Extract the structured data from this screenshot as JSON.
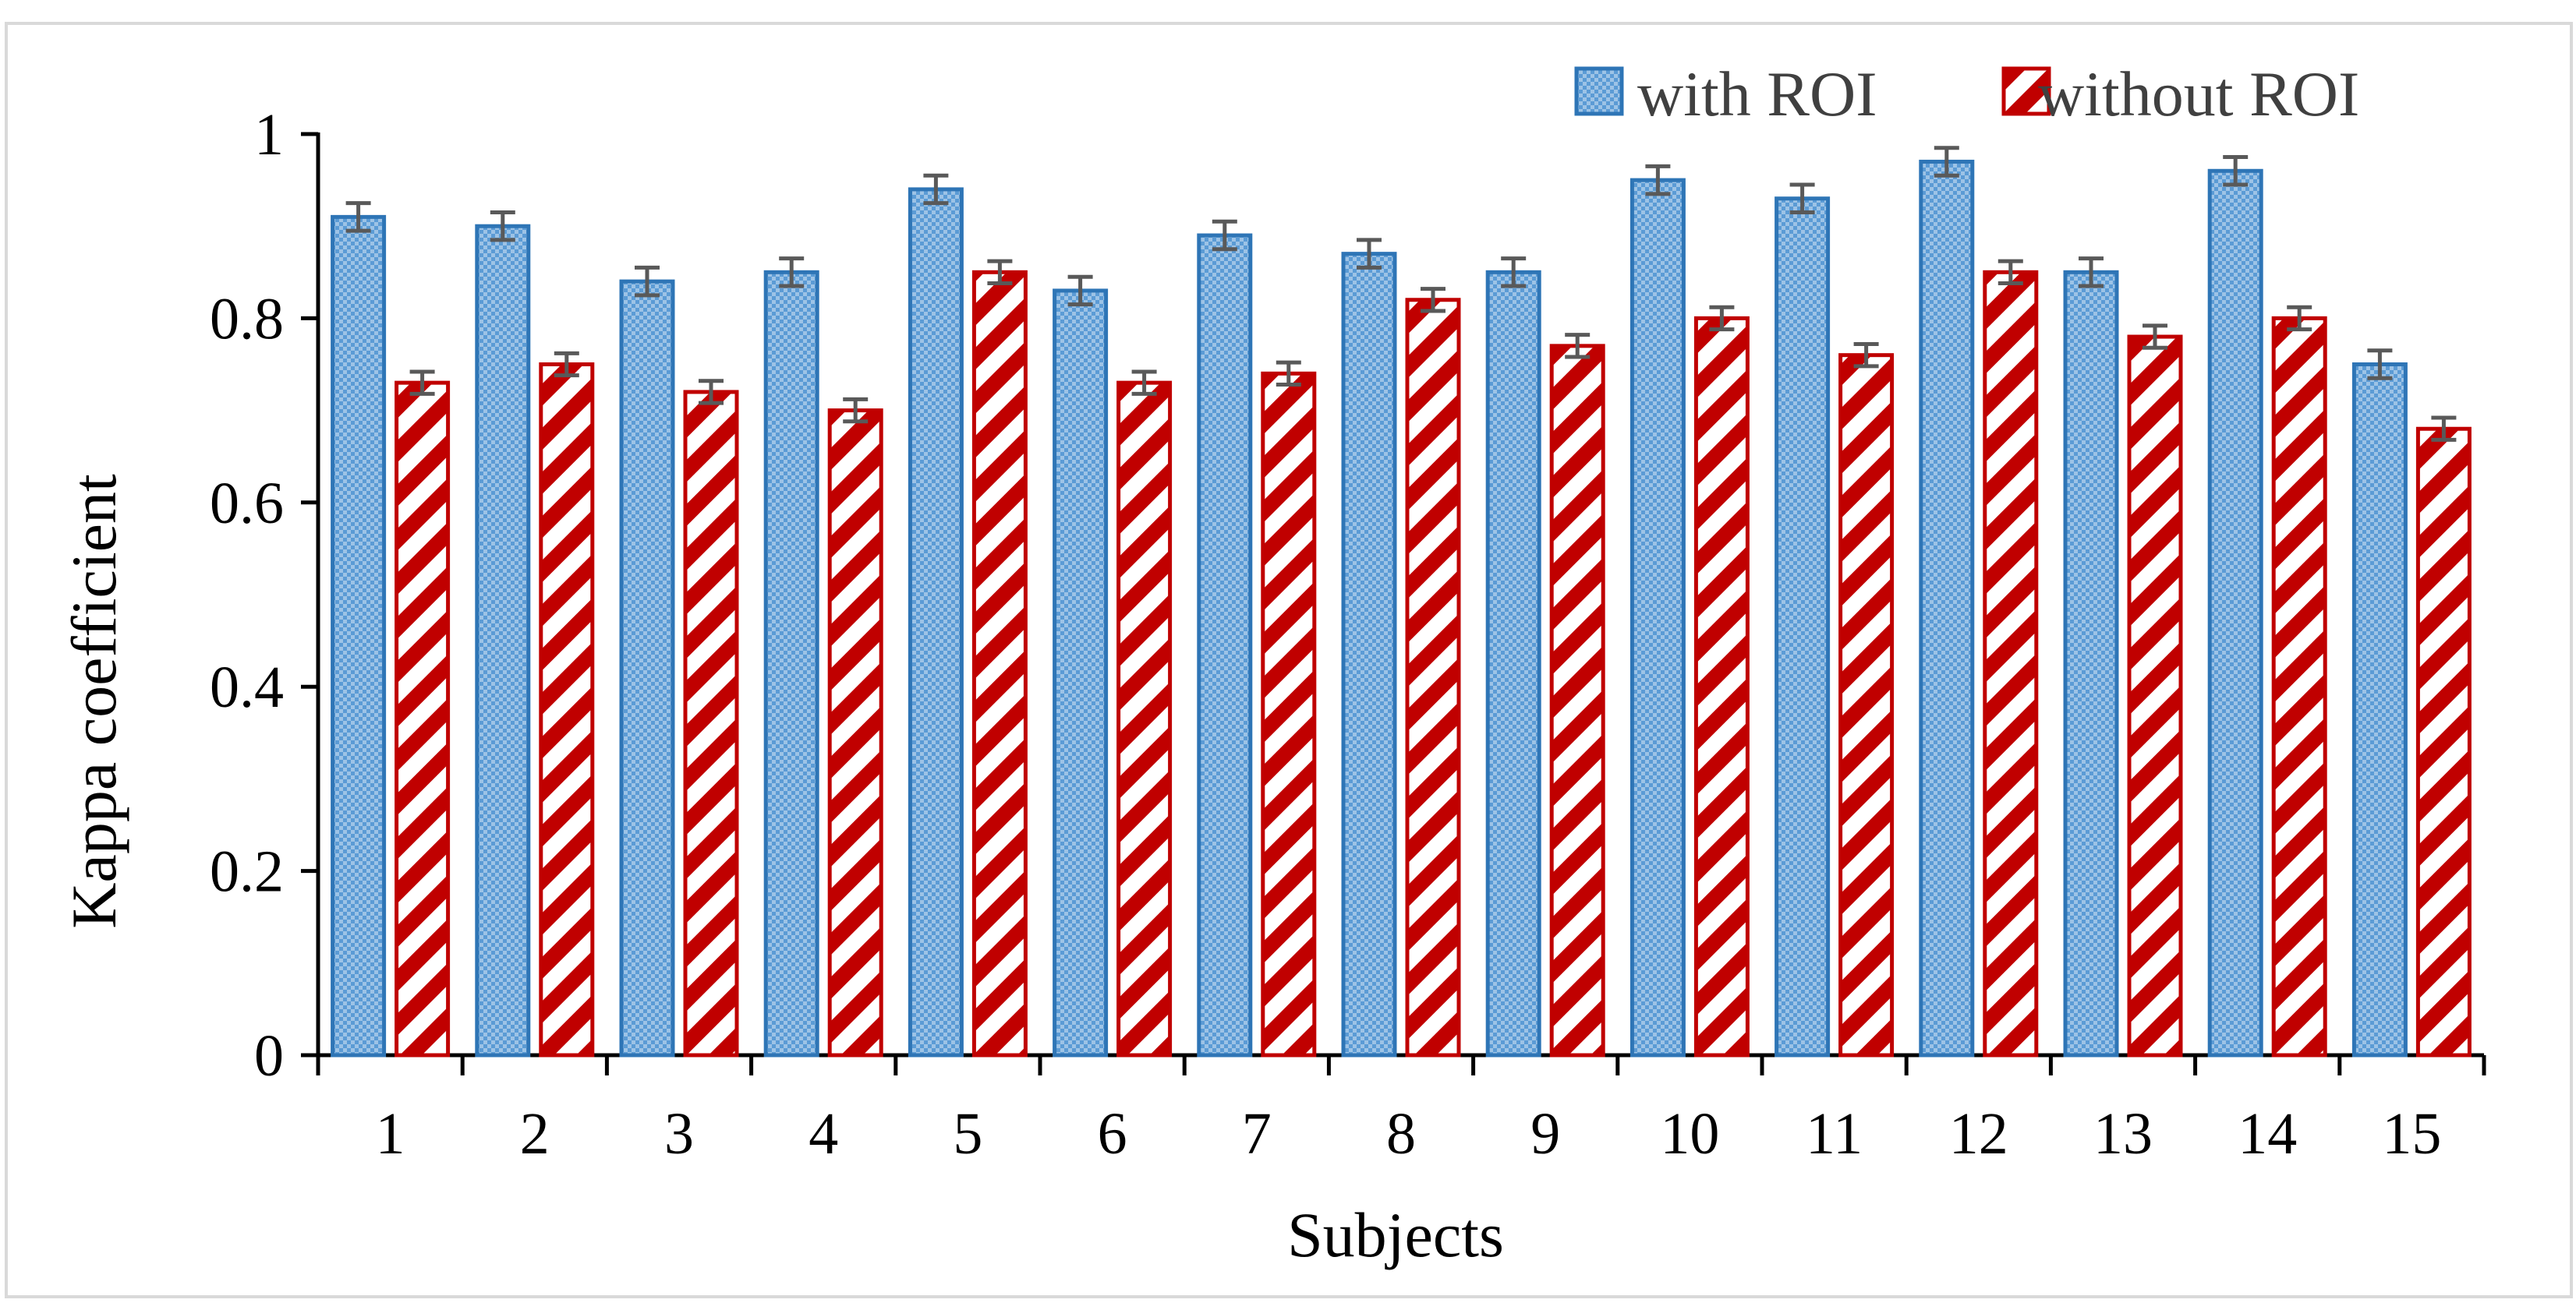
{
  "chart_data": {
    "type": "bar",
    "title": "",
    "xlabel": "Subjects",
    "ylabel": "Kappa coefficient",
    "ylim": [
      0,
      1
    ],
    "yticks": [
      0,
      0.2,
      0.4,
      0.6,
      0.8,
      1
    ],
    "ytick_labels": [
      "0",
      "0.2",
      "0.4",
      "0.6",
      "0.8",
      "1"
    ],
    "categories": [
      "1",
      "2",
      "3",
      "4",
      "5",
      "6",
      "7",
      "8",
      "9",
      "10",
      "11",
      "12",
      "13",
      "14",
      "15"
    ],
    "series": [
      {
        "name": "with ROI",
        "color": "#2E75B6",
        "fill": "#9DC3E6",
        "values": [
          0.91,
          0.9,
          0.84,
          0.85,
          0.94,
          0.83,
          0.89,
          0.87,
          0.85,
          0.95,
          0.93,
          0.97,
          0.85,
          0.96,
          0.75
        ],
        "error": 0.015
      },
      {
        "name": "without ROI",
        "color": "#C00000",
        "fill": "#FFFFFF",
        "values": [
          0.73,
          0.75,
          0.72,
          0.7,
          0.85,
          0.73,
          0.74,
          0.82,
          0.77,
          0.8,
          0.76,
          0.85,
          0.78,
          0.8,
          0.68
        ],
        "error": 0.012
      }
    ],
    "error_bar_color": "#595959",
    "legend_position": "top-right",
    "grid": false
  }
}
